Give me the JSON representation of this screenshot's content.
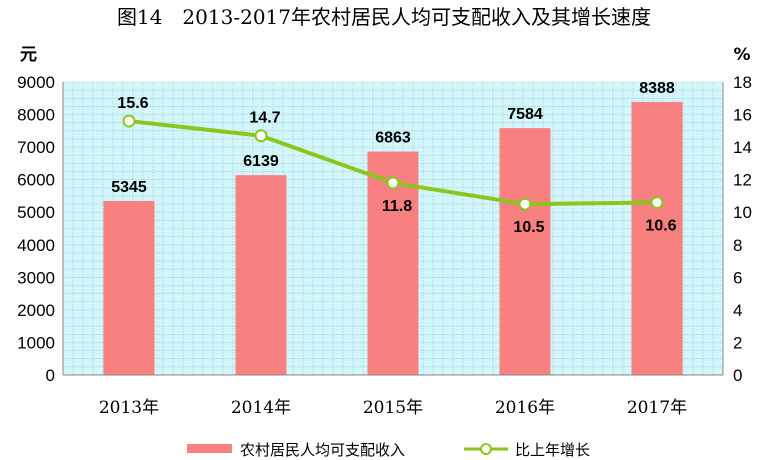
{
  "colors": {
    "bar": "#f98080",
    "line": "#8cc61c",
    "marker_fill": "#ffffff",
    "plot_bg": "#d4f6fa",
    "grid": "#7fcad6"
  },
  "chart_data": {
    "type": "bar",
    "title": "图14　2013-2017年农村居民人均可支配收入及其增长速度",
    "categories": [
      "2013年",
      "2014年",
      "2015年",
      "2016年",
      "2017年"
    ],
    "left_axis": {
      "unit": "元",
      "ylim": [
        0,
        9000
      ],
      "ticks": [
        "9000",
        "8000",
        "7000",
        "6000",
        "5000",
        "4000",
        "3000",
        "2000",
        "1000",
        "0"
      ]
    },
    "right_axis": {
      "unit": "%",
      "ylim": [
        0,
        18
      ],
      "ticks": [
        "18",
        "16",
        "14",
        "12",
        "10",
        "8",
        "6",
        "4",
        "2",
        "0"
      ]
    },
    "grid": true,
    "legend_position": "bottom",
    "series": [
      {
        "name": "农村居民人均可支配收入",
        "type": "bar",
        "axis": "left",
        "values": [
          5345,
          6139,
          6863,
          7584,
          8388
        ],
        "labels": [
          "5345",
          "6139",
          "6863",
          "7584",
          "8388"
        ]
      },
      {
        "name": "比上年增长",
        "type": "line",
        "axis": "right",
        "values": [
          15.6,
          14.7,
          11.8,
          10.5,
          10.6
        ],
        "labels": [
          "15.6",
          "14.7",
          "11.8",
          "10.5",
          "10.6"
        ]
      }
    ]
  }
}
